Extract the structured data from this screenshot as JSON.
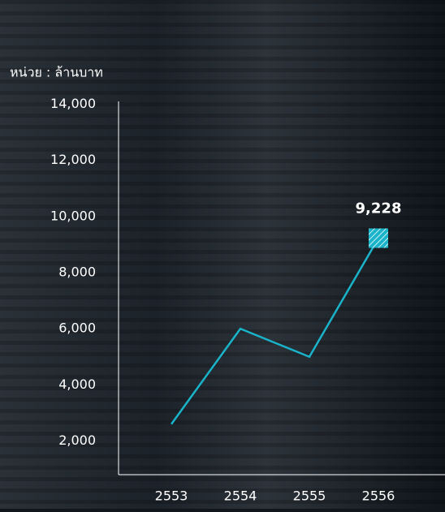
{
  "chart_data": {
    "type": "line",
    "y_axis_label": "หน่วย : ล้านบาท",
    "categories": [
      "2553",
      "2554",
      "2555",
      "2556"
    ],
    "series": [
      {
        "name": null,
        "color": "#19b4c9",
        "values": [
          2600,
          6000,
          5000,
          9228
        ],
        "value_labels": [
          null,
          null,
          null,
          "9,228"
        ]
      }
    ],
    "ylim": [
      800,
      14100
    ],
    "yticks": [
      {
        "value": 2000,
        "label": "2,000"
      },
      {
        "value": 4000,
        "label": "4,000"
      },
      {
        "value": 6000,
        "label": "6,000"
      },
      {
        "value": 8000,
        "label": "8,000"
      },
      {
        "value": 10000,
        "label": "10,000"
      },
      {
        "value": 12000,
        "label": "12,000"
      },
      {
        "value": 14000,
        "label": "14,000"
      }
    ],
    "grid": false
  }
}
